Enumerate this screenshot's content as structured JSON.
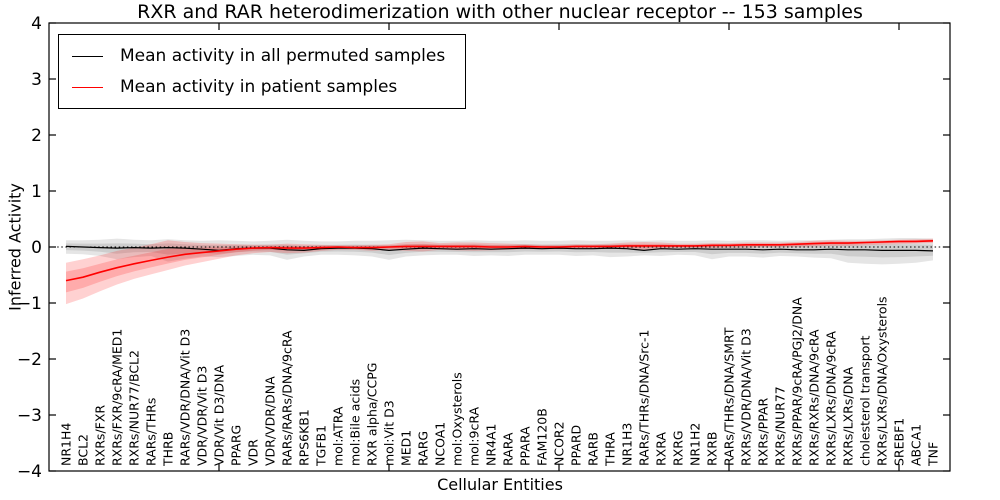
{
  "chart_data": {
    "type": "line",
    "title": "RXR and RAR heterodimerization with other nuclear receptor -- 153 samples",
    "xlabel": "Cellular Entities",
    "ylabel": "Inferred Activity",
    "ylim": [
      -4,
      4
    ],
    "yticks": [
      -4,
      -3,
      -2,
      -1,
      0,
      1,
      2,
      3,
      4
    ],
    "xlim": [
      0,
      53
    ],
    "xticks": [
      10,
      20,
      30,
      40,
      50
    ],
    "grid": false,
    "legend_position": "upper-left",
    "zero_line": true,
    "categories": [
      "NR1H4",
      "BCL2",
      "RXRs/FXR",
      "RXRs/FXR/9cRA/MED1",
      "RXRs/NUR77/BCL2",
      "RARs/THRs",
      "THRB",
      "RARs/VDR/DNA/Vit D3",
      "VDR/VDR/Vit D3",
      "VDR/Vit D3/DNA",
      "PPARG",
      "VDR",
      "VDR/VDR/DNA",
      "RARs/RARs/DNA/9cRA",
      "RPS6KB1",
      "TGFB1",
      "mol:ATRA",
      "mol:Bile acids",
      "RXR alpha/CCPG",
      "mol:Vit D3",
      "MED1",
      "RARG",
      "NCOA1",
      "mol:Oxysterols",
      "mol:9cRA",
      "NR4A1",
      "RARA",
      "PPARA",
      "FAM120B",
      "NCOR2",
      "PPARD",
      "RARB",
      "THRA",
      "NR1H3",
      "RARs/THRs/DNA/Src-1",
      "RXRA",
      "RXRG",
      "NR1H2",
      "RXRB",
      "RARs/THRs/DNA/SMRT",
      "RXRs/VDR/DNA/Vit D3",
      "RXRs/PPAR",
      "RXRs/NUR77",
      "RXRs/PPAR/9cRA/PGJ2/DNA",
      "RXRs/RXRs/DNA/9cRA",
      "RXRs/LXRs/DNA/9cRA",
      "RXRs/LXRs/DNA",
      "cholesterol transport",
      "RXRs/LXRs/DNA/Oxysterols",
      "SREBF1",
      "ABCA1",
      "TNF"
    ],
    "series": [
      {
        "name": "Mean activity in all permuted samples",
        "color": "#000000",
        "band_color": "rgba(0,0,0,0.10)",
        "values": [
          0.01,
          0.0,
          -0.01,
          -0.02,
          -0.01,
          -0.02,
          -0.01,
          -0.02,
          -0.04,
          -0.06,
          -0.03,
          -0.02,
          -0.02,
          -0.05,
          -0.06,
          -0.03,
          -0.02,
          -0.02,
          -0.03,
          -0.06,
          -0.04,
          -0.02,
          -0.03,
          -0.04,
          -0.03,
          -0.04,
          -0.03,
          -0.02,
          -0.03,
          -0.02,
          -0.03,
          -0.03,
          -0.02,
          -0.03,
          -0.06,
          -0.03,
          -0.04,
          -0.03,
          -0.04,
          -0.04,
          -0.04,
          -0.05,
          -0.04,
          -0.05,
          -0.05,
          -0.04,
          -0.05,
          -0.05,
          -0.06,
          -0.06,
          -0.06,
          -0.07
        ],
        "upper": [
          0.12,
          0.12,
          0.13,
          0.15,
          0.13,
          0.12,
          0.14,
          0.12,
          0.11,
          0.12,
          0.11,
          0.1,
          0.11,
          0.13,
          0.11,
          0.1,
          0.1,
          0.11,
          0.11,
          0.12,
          0.13,
          0.12,
          0.11,
          0.11,
          0.12,
          0.11,
          0.11,
          0.12,
          0.11,
          0.11,
          0.12,
          0.11,
          0.11,
          0.12,
          0.11,
          0.12,
          0.11,
          0.11,
          0.12,
          0.11,
          0.12,
          0.12,
          0.11,
          0.12,
          0.12,
          0.13,
          0.14,
          0.14,
          0.15,
          0.16,
          0.16,
          0.15
        ],
        "lower": [
          -0.12,
          -0.13,
          -0.16,
          -0.22,
          -0.18,
          -0.16,
          -0.26,
          -0.21,
          -0.17,
          -0.18,
          -0.16,
          -0.14,
          -0.15,
          -0.23,
          -0.17,
          -0.14,
          -0.14,
          -0.15,
          -0.17,
          -0.23,
          -0.17,
          -0.15,
          -0.14,
          -0.14,
          -0.16,
          -0.15,
          -0.16,
          -0.14,
          -0.14,
          -0.14,
          -0.16,
          -0.15,
          -0.18,
          -0.17,
          -0.15,
          -0.16,
          -0.14,
          -0.15,
          -0.22,
          -0.17,
          -0.17,
          -0.19,
          -0.16,
          -0.17,
          -0.19,
          -0.2,
          -0.28,
          -0.3,
          -0.31,
          -0.3,
          -0.28,
          -0.24
        ]
      },
      {
        "name": "Mean activity in patient samples",
        "color": "#ff0000",
        "band_color": "rgba(255,0,0,0.18)",
        "values": [
          -0.6,
          -0.54,
          -0.45,
          -0.37,
          -0.3,
          -0.24,
          -0.18,
          -0.13,
          -0.1,
          -0.07,
          -0.04,
          -0.02,
          -0.01,
          -0.02,
          -0.02,
          -0.01,
          0.0,
          -0.01,
          -0.01,
          0.0,
          0.01,
          0.01,
          0.01,
          0.01,
          0.01,
          0.0,
          0.0,
          0.01,
          0.0,
          0.0,
          0.01,
          0.01,
          0.01,
          0.02,
          0.02,
          0.02,
          0.02,
          0.02,
          0.03,
          0.03,
          0.04,
          0.04,
          0.04,
          0.05,
          0.06,
          0.07,
          0.07,
          0.08,
          0.09,
          0.1,
          0.1,
          0.11
        ],
        "upper": [
          -0.28,
          -0.22,
          -0.15,
          -0.07,
          -0.01,
          0.05,
          0.12,
          0.09,
          0.07,
          0.06,
          0.05,
          0.04,
          0.04,
          0.06,
          0.05,
          0.04,
          0.03,
          0.03,
          0.04,
          0.05,
          0.09,
          0.1,
          0.07,
          0.08,
          0.08,
          0.07,
          0.06,
          0.05,
          0.04,
          0.04,
          0.05,
          0.05,
          0.06,
          0.08,
          0.09,
          0.08,
          0.06,
          0.06,
          0.07,
          0.07,
          0.08,
          0.08,
          0.08,
          0.09,
          0.11,
          0.12,
          0.11,
          0.11,
          0.12,
          0.13,
          0.14,
          0.15
        ],
        "lower": [
          -1.02,
          -0.92,
          -0.79,
          -0.67,
          -0.57,
          -0.49,
          -0.41,
          -0.33,
          -0.27,
          -0.21,
          -0.15,
          -0.11,
          -0.09,
          -0.11,
          -0.1,
          -0.07,
          -0.05,
          -0.05,
          -0.07,
          -0.05,
          -0.07,
          -0.08,
          -0.05,
          -0.06,
          -0.07,
          -0.06,
          -0.05,
          -0.04,
          -0.04,
          -0.04,
          -0.03,
          -0.03,
          -0.03,
          -0.04,
          -0.05,
          -0.03,
          -0.02,
          -0.02,
          -0.02,
          -0.01,
          -0.01,
          0.0,
          0.0,
          0.0,
          0.01,
          0.02,
          0.02,
          0.03,
          0.04,
          0.05,
          0.06,
          0.07
        ]
      }
    ]
  }
}
